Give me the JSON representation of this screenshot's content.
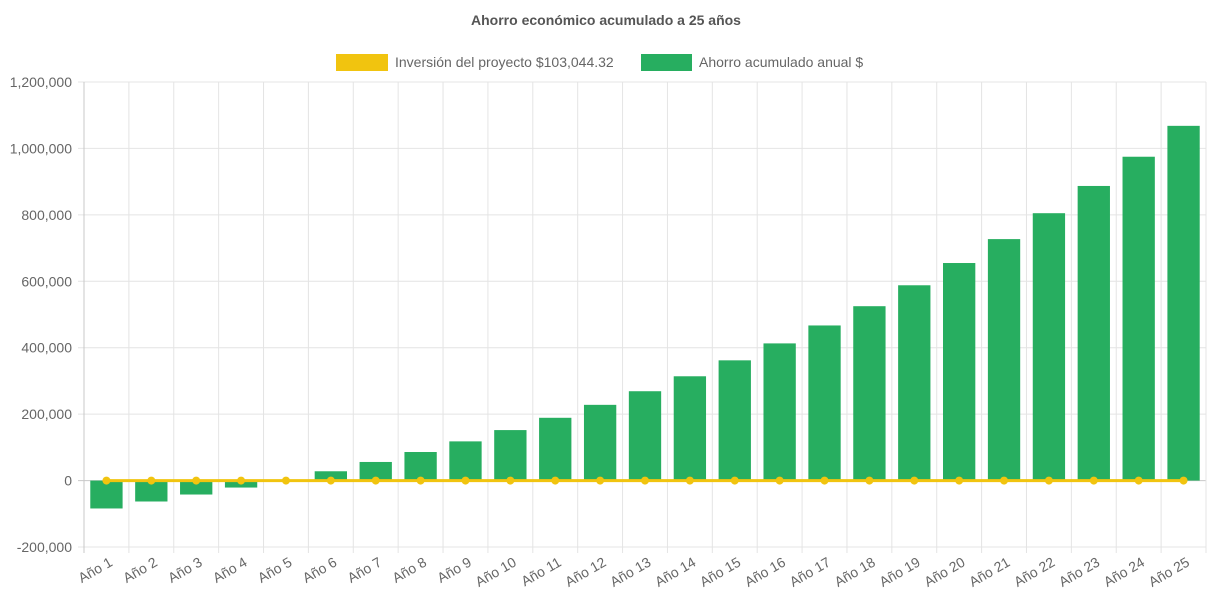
{
  "chart_data": {
    "type": "bar",
    "title": "Ahorro económico acumulado a 25 años",
    "categories": [
      "Año 1",
      "Año 2",
      "Año 3",
      "Año 4",
      "Año 5",
      "Año 6",
      "Año 7",
      "Año 8",
      "Año 9",
      "Año 10",
      "Año 11",
      "Año 12",
      "Año 13",
      "Año 14",
      "Año 15",
      "Año 16",
      "Año 17",
      "Año 18",
      "Año 19",
      "Año 20",
      "Año 21",
      "Año 22",
      "Año 23",
      "Año 24",
      "Año 25"
    ],
    "series": [
      {
        "name": "Inversión del proyecto $103,044.32",
        "type": "line",
        "color": "#f1c40f",
        "values": [
          0,
          0,
          0,
          0,
          0,
          0,
          0,
          0,
          0,
          0,
          0,
          0,
          0,
          0,
          0,
          0,
          0,
          0,
          0,
          0,
          0,
          0,
          0,
          0,
          0
        ]
      },
      {
        "name": "Ahorro acumulado anual $",
        "type": "bar",
        "color": "#27ae60",
        "values": [
          -84000,
          -63000,
          -42000,
          -21000,
          0,
          28000,
          56000,
          86000,
          118000,
          152000,
          189000,
          228000,
          269000,
          314000,
          362000,
          413000,
          467000,
          525000,
          588000,
          655000,
          727000,
          805000,
          887000,
          975000,
          1068000
        ]
      }
    ],
    "ylim": [
      -200000,
      1200000
    ],
    "yticks": [
      "1,200,000",
      "1,000,000",
      "800,000",
      "600,000",
      "400,000",
      "200,000",
      "0",
      "-200,000"
    ],
    "ytick_values": [
      1200000,
      1000000,
      800000,
      600000,
      400000,
      200000,
      0,
      -200000
    ],
    "grid": true,
    "legend": "top-center"
  }
}
